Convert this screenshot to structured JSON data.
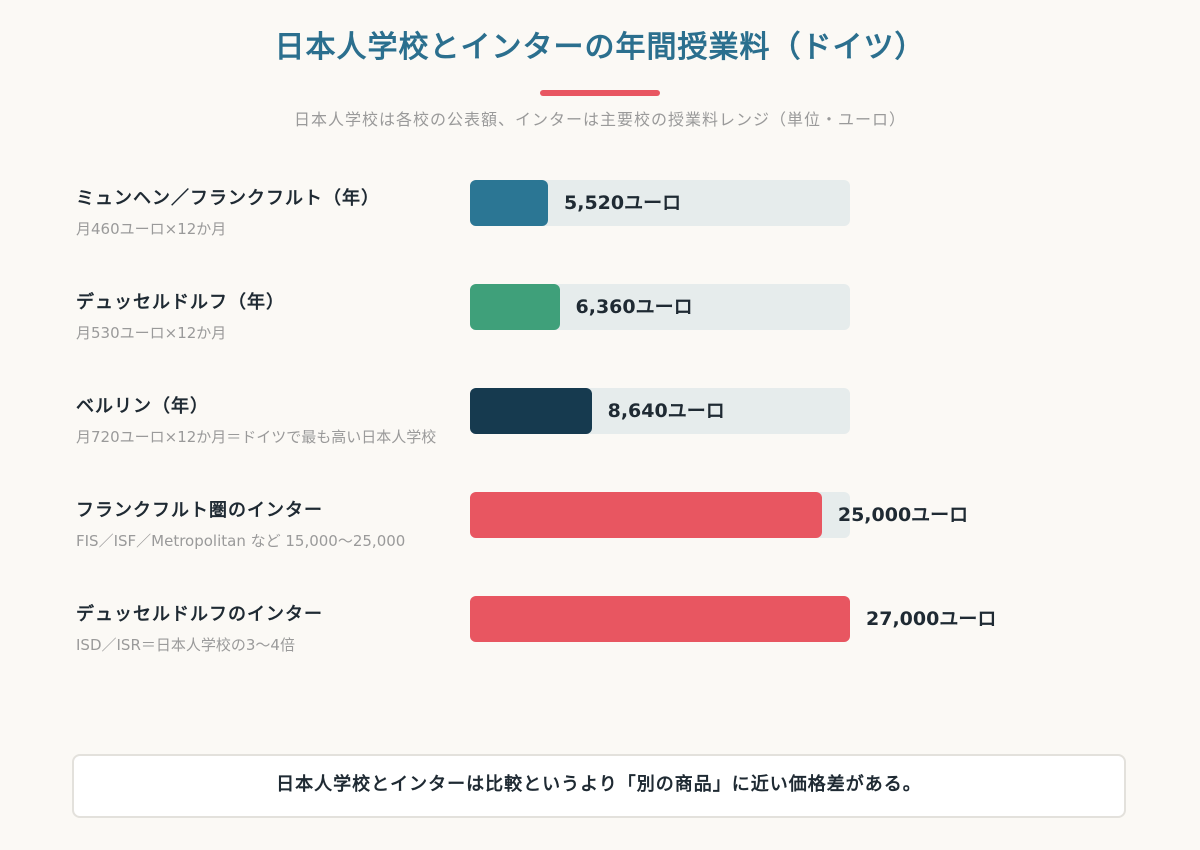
{
  "header": {
    "title": "日本人学校とインターの年間授業料（ドイツ）",
    "subtitle": "日本人学校は各校の公表額、インターは主要校の授業料レンジ（単位・ユーロ）"
  },
  "colors": {
    "title": "#2b6f8e",
    "accent_underline": "#e85661",
    "track": "#e6ecec"
  },
  "chart_data": {
    "type": "bar",
    "orientation": "horizontal",
    "unit": "ユーロ",
    "xlim": [
      0,
      27000
    ],
    "categories": [
      "ミュンヘン／フランクフルト（年）",
      "デュッセルドルフ（年）",
      "ベルリン（年）",
      "フランクフルト圏のインター",
      "デュッセルドルフのインター"
    ],
    "notes": [
      "月460ユーロ×12か月",
      "月530ユーロ×12か月",
      "月720ユーロ×12か月＝ドイツで最も高い日本人学校",
      "FIS／ISF／Metropolitan など 15,000〜25,000",
      "ISD／ISR＝日本人学校の3〜4倍"
    ],
    "values": [
      5520,
      6360,
      8640,
      25000,
      27000
    ],
    "value_labels": [
      "5,520ユーロ",
      "6,360ユーロ",
      "8,640ユーロ",
      "25,000ユーロ",
      "27,000ユーロ"
    ],
    "colors": [
      "#2b7694",
      "#3fa07a",
      "#163a4f",
      "#e85661",
      "#e85661"
    ]
  },
  "footer": {
    "message": "日本人学校とインターは比較というより「別の商品」に近い価格差がある。"
  }
}
